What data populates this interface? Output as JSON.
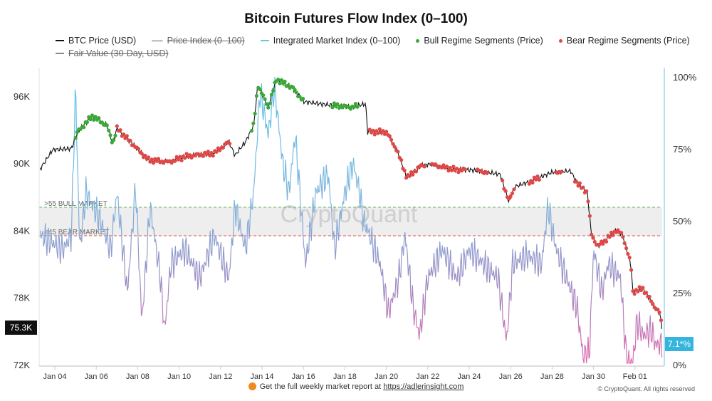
{
  "title": "Bitcoin Futures Flow Index (0–100)",
  "legend": [
    {
      "label": "BTC Price (USD)",
      "color": "#111111",
      "style": "line",
      "hidden": false
    },
    {
      "label": "Price Index (0–100)",
      "color": "#999999",
      "style": "dotted",
      "hidden": true
    },
    {
      "label": "Integrated Market Index (0–100)",
      "color": "#6cc3e6",
      "style": "line",
      "hidden": false
    },
    {
      "label": "Bull Regime Segments (Price)",
      "color": "#3aa935",
      "style": "dot",
      "hidden": false
    },
    {
      "label": "Bear Regime Segments (Price)",
      "color": "#e04848",
      "style": "dot",
      "hidden": false
    },
    {
      "label": "Fair Value (30-Day, USD)",
      "color": "#888888",
      "style": "line",
      "hidden": true
    }
  ],
  "chart_data": {
    "type": "line",
    "title": "Bitcoin Futures Flow Index (0–100)",
    "x_ticks": [
      "Jan 04",
      "Jan 06",
      "Jan 08",
      "Jan 10",
      "Jan 12",
      "Jan 14",
      "Jan 16",
      "Jan 18",
      "Jan 20",
      "Jan 22",
      "Jan 24",
      "Jan 26",
      "Jan 28",
      "Jan 30",
      "Feb 01"
    ],
    "x_tick_days": [
      4,
      6,
      8,
      10,
      12,
      14,
      16,
      18,
      20,
      22,
      24,
      26,
      28,
      30,
      32
    ],
    "x_range_days": [
      2.7,
      33.6
    ],
    "left_axis": {
      "label": "BTC Price (USD)",
      "ticks": [
        "72K",
        "78K",
        "84K",
        "90K",
        "96K"
      ],
      "tick_values": [
        72,
        78,
        84,
        90,
        96
      ],
      "range": [
        72,
        98.6
      ]
    },
    "right_axis": {
      "label": "Index (0–100)",
      "ticks": [
        "0%",
        "25%",
        "50%",
        "75%",
        "100%"
      ],
      "tick_values": [
        0,
        25,
        50,
        75,
        100
      ],
      "range": [
        0,
        102
      ]
    },
    "thresholds": [
      {
        "label": ">55 BULL MARKET",
        "value": 55,
        "color": "#4caf50"
      },
      {
        "label": "<45 BEAR MARKET",
        "value": 45,
        "color": "#d9534f"
      }
    ],
    "current_price_label": "75.3K",
    "current_index_label": "7.1*%",
    "price_series": {
      "name": "BTC Price (USD)",
      "unit": "K USD",
      "day": [
        3.3,
        3.9,
        4.8,
        5.1,
        5.8,
        6.5,
        6.8,
        7.0,
        7.6,
        8.5,
        9.5,
        10.3,
        11.7,
        12.4,
        12.7,
        13.2,
        13.6,
        13.8,
        14.3,
        14.7,
        15.5,
        16.0,
        17.2,
        18.3,
        19.0,
        19.1,
        20.0,
        20.5,
        21.0,
        21.7,
        22.1,
        23.4,
        24.1,
        25.5,
        25.9,
        26.2,
        27.0,
        28.0,
        28.9,
        29.2,
        29.7,
        29.9,
        30.2,
        30.5,
        31.1,
        31.4,
        31.8,
        31.9,
        32.4,
        32.9,
        33.2,
        33.3
      ],
      "value": [
        89.5,
        91.2,
        91.3,
        92.8,
        94.2,
        93.4,
        91.8,
        93.1,
        92.0,
        90.3,
        90.1,
        90.6,
        90.9,
        91.9,
        90.7,
        91.9,
        93.4,
        97.0,
        95.0,
        97.5,
        96.7,
        95.5,
        95.2,
        95.0,
        95.3,
        92.8,
        92.8,
        91.2,
        88.7,
        89.8,
        89.9,
        89.4,
        89.4,
        89.0,
        86.6,
        87.9,
        88.4,
        89.2,
        89.3,
        88.2,
        87.4,
        83.6,
        82.6,
        83.0,
        84.0,
        83.6,
        81.0,
        78.5,
        78.8,
        77.3,
        76.6,
        75.3
      ]
    },
    "index_series": {
      "name": "Integrated Market Index (0–100)",
      "day": [
        3.3,
        4.4,
        4.8,
        5.0,
        5.2,
        5.5,
        6.2,
        6.7,
        7.0,
        7.5,
        7.9,
        8.2,
        8.6,
        9.1,
        9.3,
        9.6,
        10.3,
        11.0,
        11.7,
        12.4,
        12.7,
        13.2,
        13.6,
        13.9,
        14.3,
        14.6,
        15.0,
        15.3,
        15.6,
        16.1,
        16.6,
        17.2,
        17.5,
        18.0,
        18.4,
        18.7,
        18.9,
        19.2,
        19.7,
        20.1,
        20.6,
        20.9,
        21.3,
        21.6,
        22.0,
        22.7,
        23.4,
        24.0,
        24.7,
        25.4,
        25.8,
        26.1,
        26.8,
        27.5,
        27.8,
        28.2,
        28.7,
        29.2,
        29.5,
        29.8,
        30.0,
        30.4,
        30.7,
        31.3,
        31.6,
        31.9,
        32.1,
        32.4,
        32.8,
        33.0,
        33.3
      ],
      "value": [
        45,
        40,
        45,
        97,
        40,
        60,
        50,
        40,
        60,
        25,
        62,
        15,
        55,
        30,
        12,
        35,
        40,
        30,
        45,
        30,
        55,
        40,
        60,
        95,
        80,
        97,
        70,
        60,
        80,
        35,
        60,
        66,
        40,
        60,
        70,
        60,
        50,
        45,
        35,
        18,
        30,
        45,
        20,
        10,
        30,
        40,
        30,
        40,
        35,
        30,
        8,
        35,
        38,
        35,
        55,
        40,
        30,
        20,
        3,
        4,
        40,
        25,
        35,
        30,
        1,
        1,
        15,
        10,
        12,
        7,
        7.1
      ]
    },
    "bull_segments_days": [
      [
        5.0,
        7.0
      ],
      [
        13.5,
        16.0
      ],
      [
        17.4,
        18.6
      ]
    ],
    "bear_segments_days": [
      [
        7.0,
        12.5
      ],
      [
        19.2,
        21.9
      ],
      [
        22.2,
        23.8
      ],
      [
        24.4,
        24.9
      ],
      [
        25.6,
        26.2
      ],
      [
        26.9,
        27.4
      ],
      [
        28.2,
        28.5
      ],
      [
        29.1,
        33.3
      ]
    ],
    "watermark": "CryptoQuant"
  },
  "footer": {
    "text": "Get the full weekly market report at",
    "link": "https://adlerinsight.com"
  },
  "copyright": "© CryptoQuant. All rights reserved"
}
